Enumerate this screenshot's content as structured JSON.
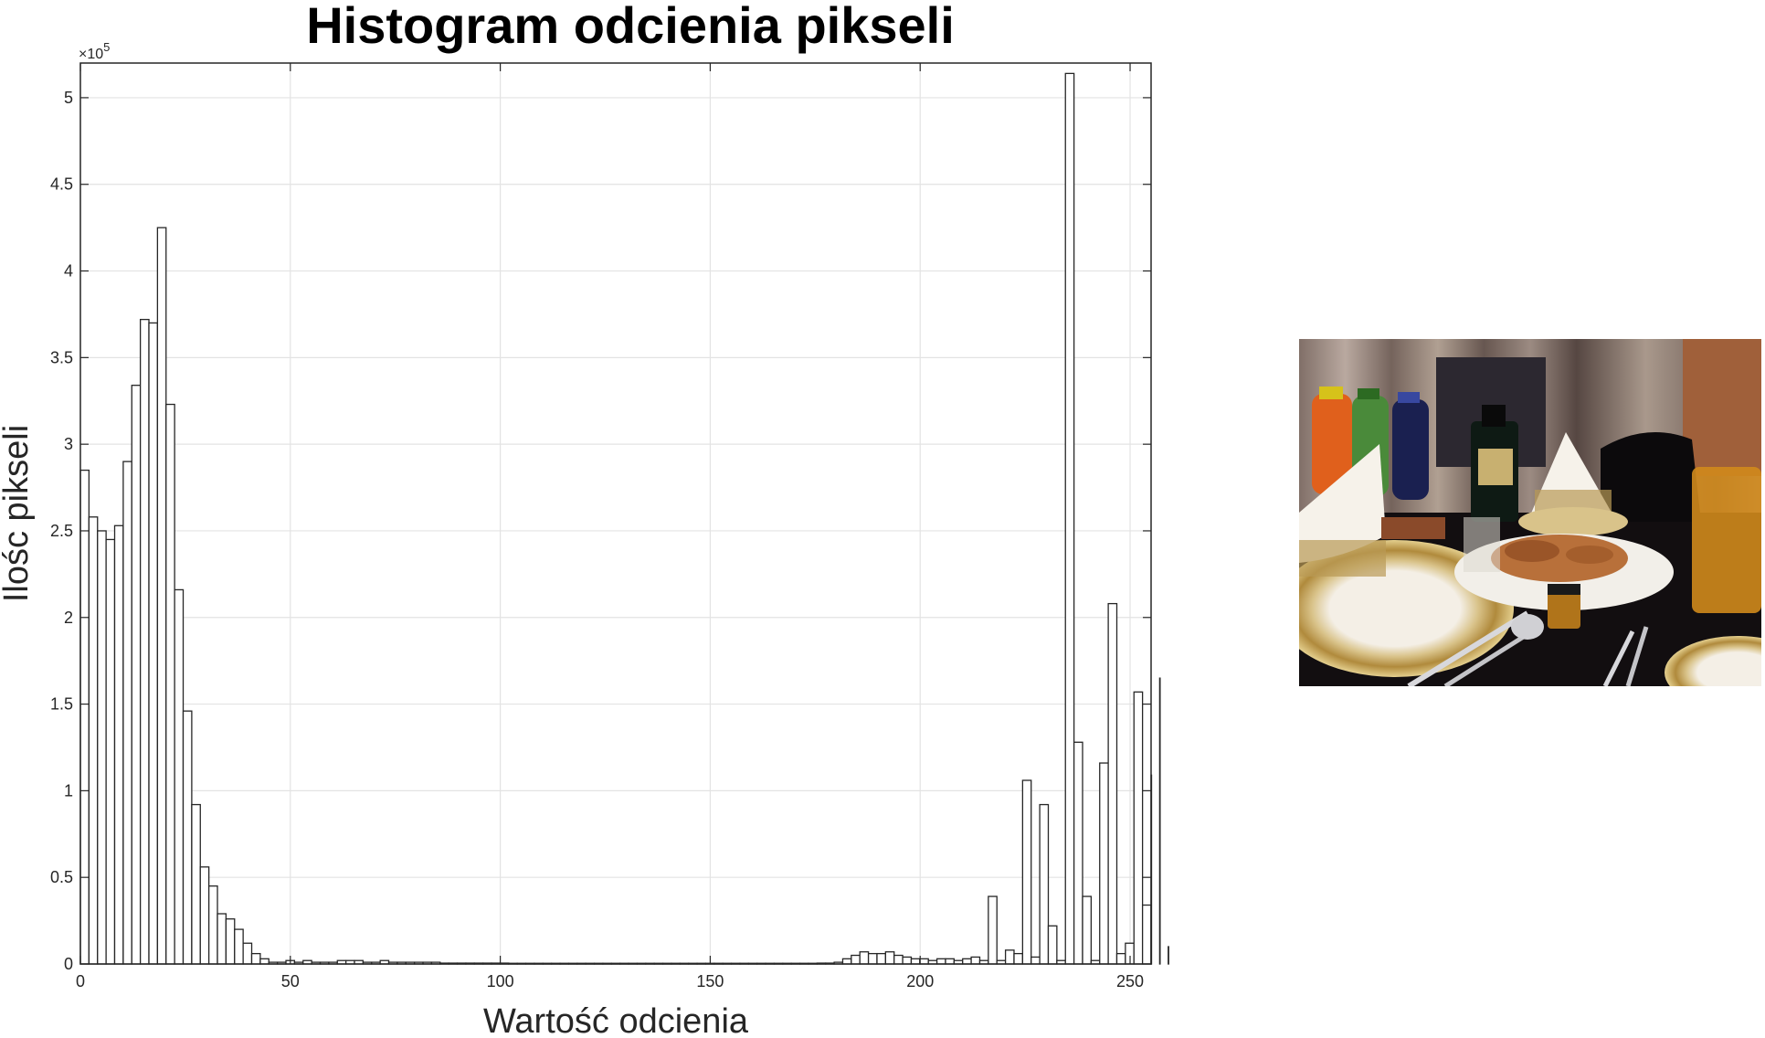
{
  "chart_data": {
    "type": "bar",
    "title": "Histogram odcienia pikseli",
    "xlabel": "Wartość odcienia",
    "ylabel": "Ilośc pikseli",
    "y_exponent_label": "×10",
    "y_exponent_power": "5",
    "y_multiplier": 100000,
    "xlim": [
      0,
      255
    ],
    "ylim": [
      0,
      5.2
    ],
    "grid": true,
    "bin_width": 2.04,
    "xticks": [
      0,
      50,
      100,
      150,
      200,
      250
    ],
    "yticks": [
      0,
      0.5,
      1,
      1.5,
      2,
      2.5,
      3,
      3.5,
      4,
      4.5,
      5
    ],
    "values": [
      2.85,
      2.58,
      2.5,
      2.45,
      2.53,
      2.9,
      3.34,
      3.72,
      3.7,
      4.25,
      3.23,
      2.16,
      1.46,
      0.92,
      0.56,
      0.45,
      0.29,
      0.26,
      0.2,
      0.12,
      0.06,
      0.03,
      0.01,
      0.01,
      0.02,
      0.01,
      0.02,
      0.01,
      0.01,
      0.01,
      0.02,
      0.02,
      0.02,
      0.01,
      0.01,
      0.02,
      0.01,
      0.01,
      0.01,
      0.01,
      0.01,
      0.01,
      0.005,
      0.005,
      0.005,
      0.005,
      0.005,
      0.005,
      0.005,
      0.005,
      0.004,
      0.004,
      0.004,
      0.004,
      0.004,
      0.004,
      0.004,
      0.004,
      0.004,
      0.004,
      0.004,
      0.004,
      0.004,
      0.004,
      0.004,
      0.004,
      0.004,
      0.004,
      0.004,
      0.004,
      0.004,
      0.004,
      0.004,
      0.004,
      0.004,
      0.004,
      0.004,
      0.004,
      0.004,
      0.004,
      0.004,
      0.004,
      0.004,
      0.004,
      0.004,
      0.004,
      0.005,
      0.005,
      0.01,
      0.03,
      0.05,
      0.07,
      0.06,
      0.06,
      0.07,
      0.05,
      0.04,
      0.03,
      0.03,
      0.02,
      0.03,
      0.03,
      0.02,
      0.03,
      0.04,
      0.02,
      0.39,
      0.02,
      0.08,
      0.06,
      1.06,
      0.04,
      0.92,
      0.22,
      0.02,
      5.14,
      1.28,
      0.39,
      0.02,
      1.16,
      2.08,
      0.06,
      0.12,
      1.57,
      0.34,
      1.09,
      1.65,
      0.1
    ]
  },
  "image_panel": {
    "icon": "photo-icon"
  }
}
